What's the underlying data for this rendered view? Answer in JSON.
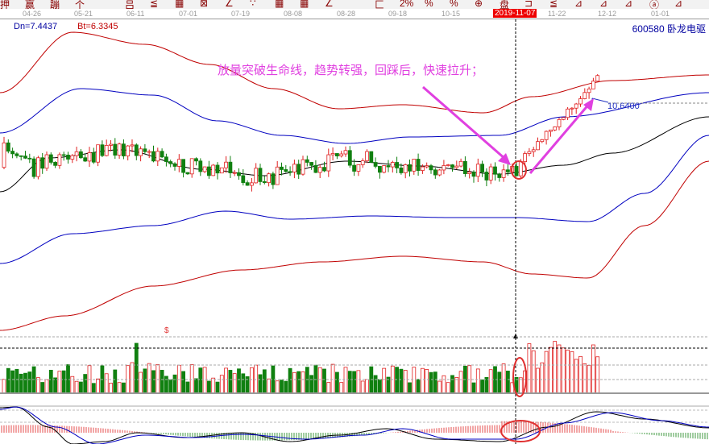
{
  "toolbar": {
    "items": [
      "押",
      "赢",
      "蹦",
      "个",
      "",
      "吕",
      "≦",
      "▦",
      "⊠",
      "∠",
      "∵",
      "▦",
      "▦",
      "∠",
      "",
      "匚",
      "2%",
      "%",
      "%",
      "⊕",
      "盘",
      "⊐",
      "≦",
      "⊿",
      "⊿",
      "⊿",
      "ⓐ",
      "⊿"
    ]
  },
  "axis": {
    "dates": [
      "04-26",
      "05-21",
      "06-11",
      "07-01",
      "07-19",
      "08-08",
      "08-28",
      "09-18",
      "10-15",
      "2019-11-07",
      "11-22",
      "12-12",
      "01-01"
    ],
    "highlight": "2019-11-07"
  },
  "info": {
    "dn": "Dn=7.4437",
    "bt": "Bt=6.3345",
    "stock": "600580  卧龙电驱"
  },
  "annotation": "放量突破生命线，趋势转强，回踩后，快速拉升；",
  "price_label": "10.6400",
  "volume_marker": "$",
  "colors": {
    "up": "#e02020",
    "down": "#108010",
    "ma": "#000000",
    "band_inner": "#0000c0",
    "band_outer": "#c00000",
    "annotation": "#e040e0",
    "highlight_circle": "#e03030"
  }
}
